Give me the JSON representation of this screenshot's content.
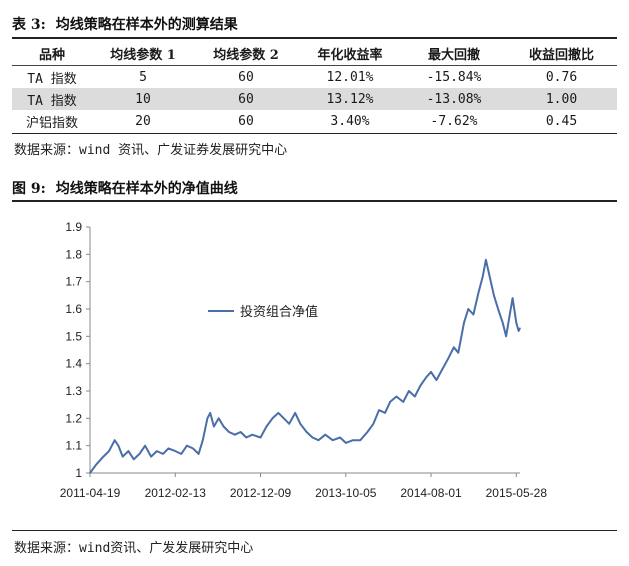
{
  "table": {
    "label": "表 3:",
    "title": "均线策略在样本外的测算结果",
    "headers": [
      "品种",
      "均线参数 1",
      "均线参数 2",
      "年化收益率",
      "最大回撤",
      "收益回撤比"
    ],
    "rows": [
      [
        "TA 指数",
        "5",
        "60",
        "12.01%",
        "-15.84%",
        "0.76"
      ],
      [
        "TA 指数",
        "10",
        "60",
        "13.12%",
        "-13.08%",
        "1.00"
      ],
      [
        "沪铝指数",
        "20",
        "60",
        "3.40%",
        "-7.62%",
        "0.45"
      ]
    ],
    "source": "数据来源：wind 资讯、广发证券发展研究中心"
  },
  "figure": {
    "label": "图 9:",
    "title": "均线策略在样本外的净值曲线",
    "source": "数据来源：wind资讯、广发发展研究中心"
  },
  "chart_data": {
    "type": "line",
    "line_color": "#4a6ea8",
    "x_tick_labels": [
      "2011-04-19",
      "2012-02-13",
      "2012-12-09",
      "2013-10-05",
      "2014-08-01",
      "2015-05-28"
    ],
    "x_ticks": [
      "2011-04-19",
      "2012-02-13",
      "2012-12-09",
      "2013-10-05",
      "2014-08-01",
      "2015-05-28"
    ],
    "y_ticks": [
      1,
      1.1,
      1.2,
      1.3,
      1.4,
      1.5,
      1.6,
      1.7,
      1.8,
      1.9
    ],
    "ylim": [
      1,
      1.9
    ],
    "xlim": [
      "2011-04-19",
      "2015-06-10"
    ],
    "grid": false,
    "legend_position": "upper-left",
    "series": [
      {
        "name": "投资组合净值",
        "points": [
          [
            "2011-04-19",
            1.0
          ],
          [
            "2011-05-10",
            1.03
          ],
          [
            "2011-06-05",
            1.06
          ],
          [
            "2011-06-25",
            1.08
          ],
          [
            "2011-07-15",
            1.12
          ],
          [
            "2011-07-28",
            1.1
          ],
          [
            "2011-08-12",
            1.06
          ],
          [
            "2011-09-01",
            1.08
          ],
          [
            "2011-09-20",
            1.05
          ],
          [
            "2011-10-10",
            1.07
          ],
          [
            "2011-10-30",
            1.1
          ],
          [
            "2011-11-20",
            1.06
          ],
          [
            "2011-12-10",
            1.08
          ],
          [
            "2012-01-01",
            1.07
          ],
          [
            "2012-01-20",
            1.09
          ],
          [
            "2012-02-13",
            1.08
          ],
          [
            "2012-03-05",
            1.07
          ],
          [
            "2012-03-25",
            1.1
          ],
          [
            "2012-04-15",
            1.09
          ],
          [
            "2012-05-05",
            1.07
          ],
          [
            "2012-05-20",
            1.12
          ],
          [
            "2012-06-05",
            1.2
          ],
          [
            "2012-06-15",
            1.22
          ],
          [
            "2012-06-28",
            1.17
          ],
          [
            "2012-07-15",
            1.2
          ],
          [
            "2012-08-01",
            1.17
          ],
          [
            "2012-08-20",
            1.15
          ],
          [
            "2012-09-10",
            1.14
          ],
          [
            "2012-09-30",
            1.15
          ],
          [
            "2012-10-20",
            1.13
          ],
          [
            "2012-11-10",
            1.14
          ],
          [
            "2012-12-09",
            1.13
          ],
          [
            "2012-12-30",
            1.17
          ],
          [
            "2013-01-20",
            1.2
          ],
          [
            "2013-02-10",
            1.22
          ],
          [
            "2013-03-01",
            1.2
          ],
          [
            "2013-03-20",
            1.18
          ],
          [
            "2013-04-10",
            1.22
          ],
          [
            "2013-04-28",
            1.18
          ],
          [
            "2013-05-20",
            1.15
          ],
          [
            "2013-06-10",
            1.13
          ],
          [
            "2013-07-01",
            1.12
          ],
          [
            "2013-07-25",
            1.14
          ],
          [
            "2013-08-20",
            1.12
          ],
          [
            "2013-09-15",
            1.13
          ],
          [
            "2013-10-05",
            1.11
          ],
          [
            "2013-10-30",
            1.12
          ],
          [
            "2013-11-25",
            1.12
          ],
          [
            "2013-12-20",
            1.15
          ],
          [
            "2014-01-10",
            1.18
          ],
          [
            "2014-01-30",
            1.23
          ],
          [
            "2014-02-20",
            1.22
          ],
          [
            "2014-03-10",
            1.26
          ],
          [
            "2014-04-01",
            1.28
          ],
          [
            "2014-04-25",
            1.26
          ],
          [
            "2014-05-15",
            1.3
          ],
          [
            "2014-06-05",
            1.28
          ],
          [
            "2014-06-25",
            1.32
          ],
          [
            "2014-07-15",
            1.35
          ],
          [
            "2014-08-01",
            1.37
          ],
          [
            "2014-08-20",
            1.34
          ],
          [
            "2014-09-10",
            1.38
          ],
          [
            "2014-10-01",
            1.42
          ],
          [
            "2014-10-20",
            1.46
          ],
          [
            "2014-11-05",
            1.44
          ],
          [
            "2014-11-25",
            1.55
          ],
          [
            "2014-12-10",
            1.6
          ],
          [
            "2014-12-28",
            1.58
          ],
          [
            "2015-01-15",
            1.66
          ],
          [
            "2015-01-30",
            1.72
          ],
          [
            "2015-02-10",
            1.78
          ],
          [
            "2015-02-25",
            1.71
          ],
          [
            "2015-03-10",
            1.65
          ],
          [
            "2015-03-25",
            1.6
          ],
          [
            "2015-04-10",
            1.55
          ],
          [
            "2015-04-22",
            1.5
          ],
          [
            "2015-05-05",
            1.58
          ],
          [
            "2015-05-15",
            1.64
          ],
          [
            "2015-05-28",
            1.55
          ],
          [
            "2015-06-05",
            1.52
          ],
          [
            "2015-06-10",
            1.53
          ]
        ]
      }
    ]
  }
}
